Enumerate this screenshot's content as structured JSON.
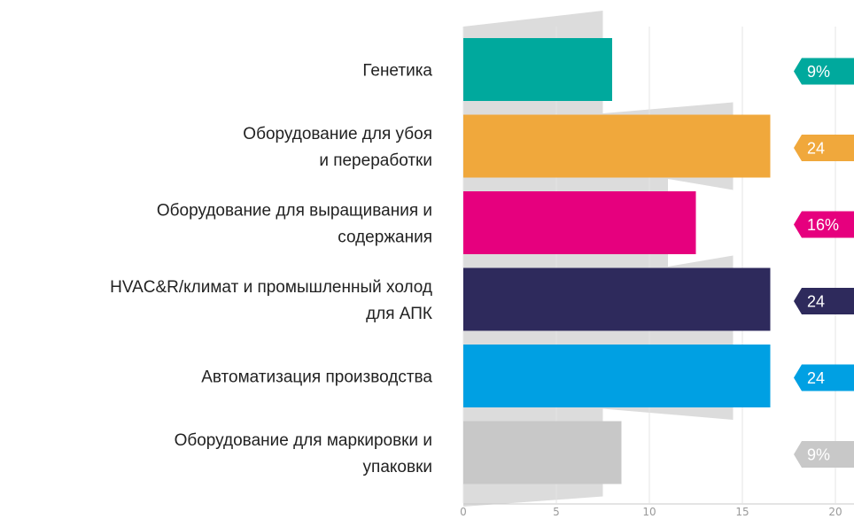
{
  "chart_data": {
    "type": "bar",
    "orientation": "horizontal",
    "title": "",
    "xlabel": "",
    "ylabel": "",
    "xlim": [
      0,
      20
    ],
    "x_ticks": [
      0,
      5,
      10,
      15,
      20
    ],
    "grid": true,
    "categories": [
      [
        "Генетика"
      ],
      [
        "Оборудование для убоя",
        "и переработки"
      ],
      [
        "Оборудование для выращивания и",
        "содержания"
      ],
      [
        "HVAC&R/климат и промышленный холод",
        "для АПК"
      ],
      [
        "Автоматизация производства"
      ],
      [
        "Оборудование для маркировки и",
        "упаковки"
      ]
    ],
    "values": [
      8,
      16.5,
      12.5,
      16.5,
      16.5,
      8.5
    ],
    "background_shape_values": [
      7.5,
      14.5,
      11,
      14.5,
      14.5,
      7.5
    ],
    "tags": [
      "9%",
      "24",
      "16%",
      "24",
      "24",
      "9%"
    ],
    "colors": [
      "#00a99d",
      "#f0a83c",
      "#e6007e",
      "#2e2a5c",
      "#00a0e3",
      "#c8c8c8"
    ],
    "background_color": "#dcdcdc"
  }
}
